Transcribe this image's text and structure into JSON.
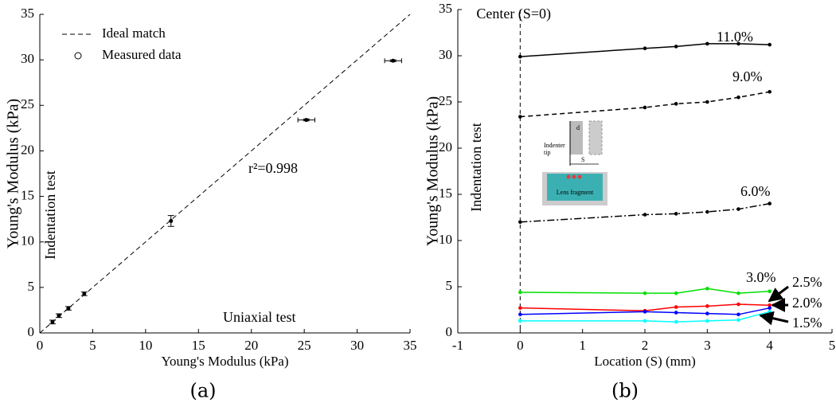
{
  "chart_data": [
    {
      "type": "scatter",
      "caption": "(a)",
      "x_label": "Young's Modulus (kPa)",
      "y_label": "Young's Modulus (kPa)",
      "annotations": [
        "Indentation test",
        "Uniaxial test",
        "r²=0.998"
      ],
      "xlim": [
        0,
        35
      ],
      "ylim": [
        0,
        35
      ],
      "xticks": [
        0,
        5,
        10,
        15,
        20,
        25,
        30,
        35
      ],
      "yticks": [
        0,
        5,
        10,
        15,
        20,
        25,
        30,
        35
      ],
      "legend": "upper left",
      "series": [
        {
          "name": "Ideal match",
          "style": "dashed",
          "color": "#000000",
          "x": [
            0,
            35
          ],
          "values": [
            0,
            35
          ]
        },
        {
          "name": "Measured data",
          "marker": "circle",
          "color": "#000000",
          "x": [
            1.2,
            1.8,
            2.7,
            4.2,
            12.4,
            25.2,
            33.4
          ],
          "values": [
            1.2,
            1.9,
            2.7,
            4.3,
            12.3,
            23.4,
            29.9
          ],
          "y_err": [
            0.2,
            0.2,
            0.2,
            0.2,
            0.6,
            0.1,
            0.1
          ],
          "x_err": [
            0,
            0,
            0,
            0,
            0,
            0.8,
            0.8
          ]
        }
      ]
    },
    {
      "type": "line",
      "caption": "(b)",
      "x_label": "Location (S) (mm)",
      "y_label": "Young's Modulus (kPa)",
      "annotations": [
        "Center (S=0)",
        "Indentation test"
      ],
      "inset_labels": [
        "d",
        "Indenter",
        "tip",
        "S",
        "Lens fragment"
      ],
      "center_line": 0,
      "xlim": [
        -1,
        5
      ],
      "ylim": [
        0,
        35
      ],
      "xticks": [
        -1,
        0,
        1,
        2,
        3,
        4,
        5
      ],
      "yticks": [
        0,
        5,
        10,
        15,
        20,
        25,
        30,
        35
      ],
      "x": [
        0,
        2,
        2.5,
        3,
        3.5,
        4
      ],
      "series": [
        {
          "name": "11.0%",
          "color": "#000000",
          "style": "solid",
          "values": [
            29.9,
            30.8,
            31.0,
            31.3,
            31.3,
            31.2
          ]
        },
        {
          "name": "9.0%",
          "color": "#000000",
          "style": "dashed",
          "values": [
            23.4,
            24.4,
            24.8,
            25.0,
            25.5,
            26.1
          ]
        },
        {
          "name": "6.0%",
          "color": "#000000",
          "style": "dashdot",
          "values": [
            12.0,
            12.8,
            12.9,
            13.1,
            13.4,
            14.0
          ]
        },
        {
          "name": "3.0%",
          "color": "#00e000",
          "style": "solid",
          "values": [
            4.4,
            4.3,
            4.3,
            4.8,
            4.3,
            4.5
          ]
        },
        {
          "name": "2.5%",
          "color": "#ff0000",
          "style": "solid",
          "values": [
            2.7,
            2.4,
            2.8,
            2.9,
            3.1,
            3.0
          ]
        },
        {
          "name": "2.0%",
          "color": "#0000ff",
          "style": "solid",
          "values": [
            2.0,
            2.3,
            2.2,
            2.1,
            2.0,
            2.7
          ]
        },
        {
          "name": "1.5%",
          "color": "#00ffff",
          "style": "solid",
          "values": [
            1.3,
            1.3,
            1.2,
            1.3,
            1.4,
            2.3
          ]
        }
      ]
    }
  ]
}
